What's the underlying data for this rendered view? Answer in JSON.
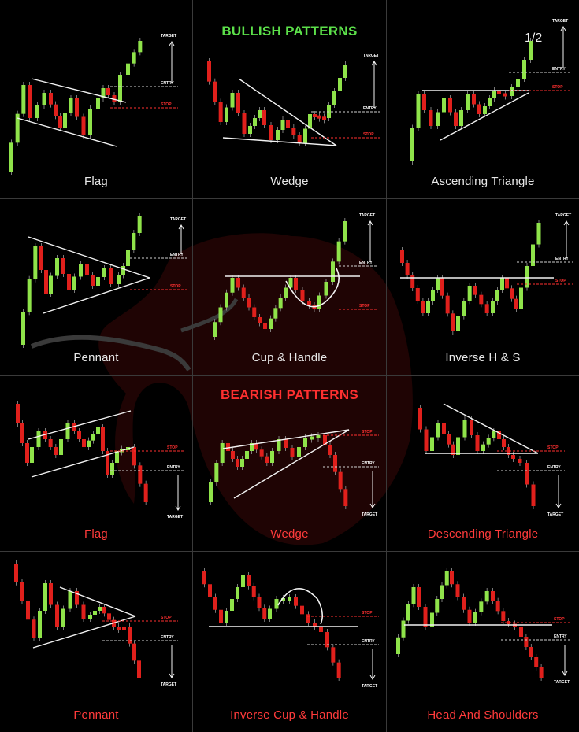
{
  "page_counter": "1/2",
  "headings": {
    "bullish": "BULLISH PATTERNS",
    "bearish": "BEARISH PATTERNS"
  },
  "colors": {
    "bull": "#5ce04a",
    "bear": "#ff3030",
    "candle_up": "#8fe34a",
    "candle_down": "#e0201c",
    "line": "#f2f2f2",
    "grid": "#3a3a3a",
    "label": "#ffffff",
    "stop": "#ff3030"
  },
  "level_labels": {
    "target": "TARGET",
    "entry": "ENTRY",
    "stop": "STOP"
  },
  "patterns": [
    {
      "id": "bull-flag",
      "group": "bullish",
      "name": "Flag"
    },
    {
      "id": "bull-wedge",
      "group": "bullish",
      "name": "Wedge"
    },
    {
      "id": "bull-ascending-triangle",
      "group": "bullish",
      "name": "Ascending Triangle"
    },
    {
      "id": "bull-pennant",
      "group": "bullish",
      "name": "Pennant"
    },
    {
      "id": "bull-cup-handle",
      "group": "bullish",
      "name": "Cup & Handle"
    },
    {
      "id": "bull-inverse-hs",
      "group": "bullish",
      "name": "Inverse H & S"
    },
    {
      "id": "bear-flag",
      "group": "bearish",
      "name": "Flag"
    },
    {
      "id": "bear-wedge",
      "group": "bearish",
      "name": "Wedge"
    },
    {
      "id": "bear-descending-triangle",
      "group": "bearish",
      "name": "Descending Triangle"
    },
    {
      "id": "bear-pennant",
      "group": "bearish",
      "name": "Pennant"
    },
    {
      "id": "bear-inverse-cup-handle",
      "group": "bearish",
      "name": "Inverse Cup & Handle"
    },
    {
      "id": "bear-head-shoulders",
      "group": "bearish",
      "name": "Head And Shoulders"
    }
  ]
}
